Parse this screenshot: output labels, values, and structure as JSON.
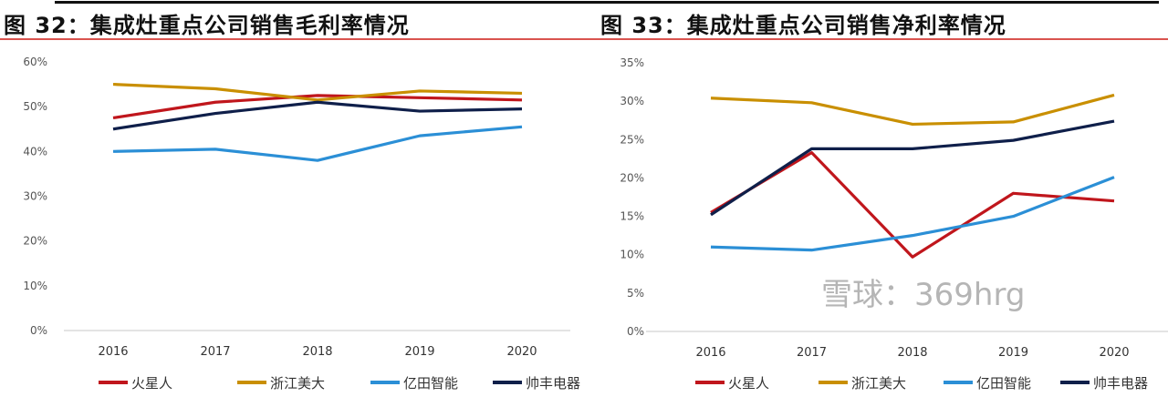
{
  "titles": {
    "left": "图 32：集成灶重点公司销售毛利率情况",
    "right": "图 33：集成灶重点公司销售净利率情况"
  },
  "watermark": "雪球：369hrg",
  "chart_data": [
    {
      "type": "line",
      "title": "图 32：集成灶重点公司销售毛利率情况",
      "categories": [
        "2016",
        "2017",
        "2018",
        "2019",
        "2020"
      ],
      "ylim": [
        0,
        60
      ],
      "yticks": [
        "0%",
        "10%",
        "20%",
        "30%",
        "40%",
        "50%",
        "60%"
      ],
      "ytick_values": [
        0,
        10,
        20,
        30,
        40,
        50,
        60
      ],
      "grid": false,
      "legend": "bottom",
      "series": [
        {
          "name": "火星人",
          "color": "#c0161c",
          "values": [
            47.5,
            51,
            52.5,
            52,
            51.5
          ]
        },
        {
          "name": "浙江美大",
          "color": "#c98f00",
          "values": [
            55,
            54,
            51.5,
            53.5,
            53
          ]
        },
        {
          "name": "亿田智能",
          "color": "#2b8fd6",
          "values": [
            40,
            40.5,
            38,
            43.5,
            45.5
          ]
        },
        {
          "name": "帅丰电器",
          "color": "#0f1f4a",
          "values": [
            45,
            48.5,
            51,
            49,
            49.5
          ]
        }
      ]
    },
    {
      "type": "line",
      "title": "图 33：集成灶重点公司销售净利率情况",
      "categories": [
        "2016",
        "2017",
        "2018",
        "2019",
        "2020"
      ],
      "ylim": [
        0,
        35
      ],
      "yticks": [
        "0%",
        "5%",
        "10%",
        "15%",
        "20%",
        "25%",
        "30%",
        "35%"
      ],
      "ytick_values": [
        0,
        5,
        10,
        15,
        20,
        25,
        30,
        35
      ],
      "grid": false,
      "legend": "bottom",
      "series": [
        {
          "name": "火星人",
          "color": "#c0161c",
          "values": [
            15.5,
            23.3,
            9.7,
            18,
            17
          ]
        },
        {
          "name": "浙江美大",
          "color": "#c98f00",
          "values": [
            30.4,
            29.8,
            27,
            27.3,
            30.8
          ]
        },
        {
          "name": "亿田智能",
          "color": "#2b8fd6",
          "values": [
            11,
            10.6,
            12.5,
            15,
            20.1
          ]
        },
        {
          "name": "帅丰电器",
          "color": "#0f1f4a",
          "values": [
            15.2,
            23.8,
            23.8,
            24.9,
            27.4
          ]
        }
      ]
    }
  ]
}
